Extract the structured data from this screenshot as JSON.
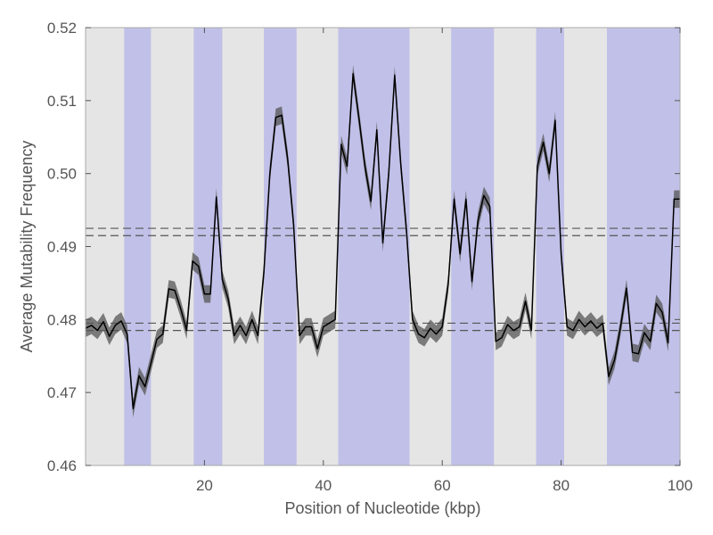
{
  "chart_data": {
    "type": "line",
    "title": "",
    "xlabel": "Position of Nucleotide (kbp)",
    "ylabel": "Average Mutability Frequency",
    "xlim": [
      0,
      100
    ],
    "ylim": [
      0.46,
      0.52
    ],
    "xticks": [
      20,
      40,
      60,
      80,
      100
    ],
    "yticks": [
      0.46,
      0.47,
      0.48,
      0.49,
      0.5,
      0.51,
      0.52
    ],
    "xtick_labels": [
      "20",
      "40",
      "60",
      "80",
      "100"
    ],
    "ytick_labels": [
      "0.46",
      "0.47",
      "0.48",
      "0.49",
      "0.50",
      "0.51",
      "0.52"
    ],
    "grid": false,
    "shaded_regions": [
      [
        6.5,
        11
      ],
      [
        18.2,
        23
      ],
      [
        30,
        35.5
      ],
      [
        42.5,
        54.5
      ],
      [
        61.5,
        68.7
      ],
      [
        75.8,
        80.5
      ],
      [
        87.7,
        100
      ]
    ],
    "reference_lines": [
      0.4925,
      0.4915,
      0.4795,
      0.4785
    ],
    "series": [
      {
        "band_halfwidth": 0.0012,
        "x": [
          0,
          1,
          2,
          3,
          4,
          5,
          6,
          7,
          8,
          9,
          10,
          11,
          12,
          13,
          14,
          15,
          16,
          17,
          18,
          19,
          20,
          21,
          22,
          23,
          24,
          25,
          26,
          27,
          28,
          29,
          30,
          31,
          32,
          33,
          34,
          35,
          36,
          37,
          38,
          39,
          40,
          41,
          42,
          43,
          44,
          45,
          46,
          47,
          48,
          49,
          50,
          51,
          52,
          53,
          54,
          55,
          56,
          57,
          58,
          59,
          60,
          61,
          62,
          63,
          64,
          65,
          66,
          67,
          68,
          69,
          70,
          71,
          72,
          73,
          74,
          75,
          76,
          77,
          78,
          79,
          80,
          81,
          82,
          83,
          84,
          85,
          86,
          87,
          88,
          89,
          90,
          91,
          92,
          93,
          94,
          95,
          96,
          97,
          98,
          99,
          100
        ],
        "values": [
          0.4788,
          0.4792,
          0.4785,
          0.4797,
          0.4777,
          0.4792,
          0.4798,
          0.478,
          0.4678,
          0.4723,
          0.4708,
          0.474,
          0.4773,
          0.478,
          0.4842,
          0.484,
          0.4815,
          0.4785,
          0.488,
          0.4873,
          0.4835,
          0.4835,
          0.4968,
          0.4855,
          0.4828,
          0.4778,
          0.4792,
          0.4778,
          0.48,
          0.4778,
          0.4865,
          0.5,
          0.5077,
          0.508,
          0.502,
          0.493,
          0.4778,
          0.479,
          0.479,
          0.476,
          0.479,
          0.4795,
          0.48,
          0.504,
          0.501,
          0.5137,
          0.5075,
          0.501,
          0.4962,
          0.506,
          0.4905,
          0.5,
          0.5135,
          0.5015,
          0.492,
          0.48,
          0.478,
          0.4775,
          0.4788,
          0.478,
          0.479,
          0.4848,
          0.4965,
          0.489,
          0.4965,
          0.4852,
          0.4935,
          0.497,
          0.4955,
          0.477,
          0.4775,
          0.4793,
          0.4785,
          0.479,
          0.4825,
          0.4785,
          0.501,
          0.5043,
          0.5,
          0.5073,
          0.489,
          0.479,
          0.4785,
          0.48,
          0.479,
          0.4798,
          0.4788,
          0.4795,
          0.4722,
          0.4745,
          0.479,
          0.4843,
          0.4755,
          0.4753,
          0.4782,
          0.477,
          0.4822,
          0.481,
          0.4768,
          0.4965,
          0.4965
        ]
      }
    ],
    "colors": {
      "background": "#e5e5e5",
      "shade": "#c0c0e8",
      "line": "#000000",
      "band": "#555555",
      "reference": "#555555",
      "frame": "#aaaaaa"
    }
  }
}
